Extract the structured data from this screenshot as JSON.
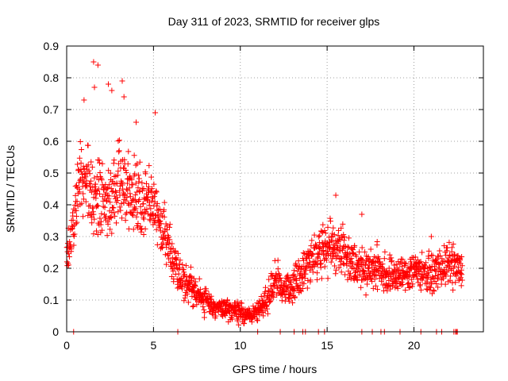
{
  "chart_data": {
    "type": "scatter",
    "title": "Day 311 of 2023, SRMTID for receiver glps",
    "xlabel": "GPS time / hours",
    "ylabel": "SRMTID / TECUs",
    "xlim": [
      0,
      24
    ],
    "ylim": [
      0,
      0.9
    ],
    "grid": true,
    "x_ticks": [
      0,
      5,
      10,
      15,
      20
    ],
    "x_tick_labels": [
      "0",
      "5",
      "10",
      "15",
      "20"
    ],
    "y_ticks": [
      0,
      0.1,
      0.2,
      0.3,
      0.4,
      0.5,
      0.6,
      0.7,
      0.8,
      0.9
    ],
    "y_tick_labels": [
      "0",
      "0.1",
      "0.2",
      "0.3",
      "0.4",
      "0.5",
      "0.6",
      "0.7",
      "0.8",
      "0.9"
    ],
    "series": [
      {
        "name": "SRMTID",
        "marker": "plus",
        "color": "#ff0000",
        "envelope": {
          "x": [
            0.0,
            0.3,
            0.6,
            0.9,
            1.2,
            1.5,
            1.8,
            2.1,
            2.5,
            3.0,
            3.5,
            4.0,
            4.5,
            5.0,
            5.3,
            5.6,
            6.0,
            6.5,
            7.0,
            7.5,
            8.0,
            8.5,
            9.0,
            9.5,
            10.0,
            10.5,
            11.0,
            11.5,
            12.0,
            12.5,
            13.0,
            13.5,
            14.0,
            14.5,
            15.0,
            15.5,
            16.0,
            16.5,
            17.0,
            17.5,
            18.0,
            18.5,
            19.0,
            19.5,
            20.0,
            20.5,
            21.0,
            21.5,
            22.0,
            22.5,
            22.8
          ],
          "center": [
            0.22,
            0.3,
            0.42,
            0.5,
            0.47,
            0.4,
            0.46,
            0.42,
            0.4,
            0.45,
            0.45,
            0.42,
            0.4,
            0.4,
            0.35,
            0.32,
            0.24,
            0.18,
            0.15,
            0.12,
            0.1,
            0.08,
            0.07,
            0.07,
            0.06,
            0.05,
            0.06,
            0.1,
            0.16,
            0.14,
            0.14,
            0.18,
            0.22,
            0.25,
            0.27,
            0.27,
            0.25,
            0.22,
            0.2,
            0.2,
            0.2,
            0.18,
            0.18,
            0.18,
            0.2,
            0.19,
            0.18,
            0.2,
            0.21,
            0.2,
            0.18
          ],
          "spread": [
            0.05,
            0.07,
            0.1,
            0.1,
            0.1,
            0.1,
            0.12,
            0.1,
            0.12,
            0.12,
            0.1,
            0.1,
            0.1,
            0.1,
            0.08,
            0.07,
            0.06,
            0.05,
            0.05,
            0.04,
            0.04,
            0.03,
            0.03,
            0.03,
            0.03,
            0.02,
            0.03,
            0.04,
            0.05,
            0.05,
            0.05,
            0.06,
            0.07,
            0.07,
            0.08,
            0.07,
            0.07,
            0.06,
            0.06,
            0.06,
            0.06,
            0.06,
            0.05,
            0.05,
            0.06,
            0.05,
            0.05,
            0.05,
            0.06,
            0.06,
            0.05
          ]
        },
        "peaks": [
          {
            "x": 1.0,
            "y": 0.73
          },
          {
            "x": 1.55,
            "y": 0.85
          },
          {
            "x": 1.8,
            "y": 0.84
          },
          {
            "x": 1.6,
            "y": 0.77
          },
          {
            "x": 2.4,
            "y": 0.78
          },
          {
            "x": 2.6,
            "y": 0.76
          },
          {
            "x": 3.2,
            "y": 0.79
          },
          {
            "x": 3.3,
            "y": 0.74
          },
          {
            "x": 4.0,
            "y": 0.66
          },
          {
            "x": 5.1,
            "y": 0.69
          },
          {
            "x": 15.5,
            "y": 0.43
          },
          {
            "x": 17.0,
            "y": 0.37
          },
          {
            "x": 21.0,
            "y": 0.3
          }
        ],
        "zero_points_x": [
          0.4,
          6.4,
          11.0,
          12.3,
          13.1,
          13.6,
          13.75,
          14.5,
          14.85,
          17.0,
          17.6,
          18.1,
          18.3,
          19.2,
          20.4,
          21.3,
          21.6,
          22.3,
          22.4,
          22.45,
          22.5
        ]
      }
    ]
  }
}
